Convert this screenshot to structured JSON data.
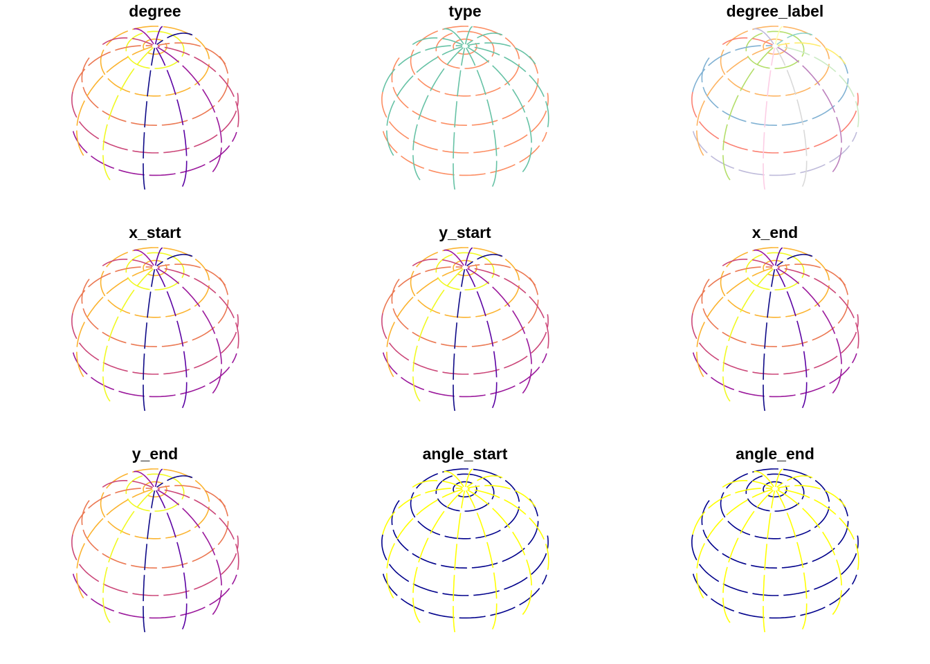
{
  "panels": [
    {
      "title": "degree",
      "palette": "plasma"
    },
    {
      "title": "type",
      "palette": "set2"
    },
    {
      "title": "degree_label",
      "palette": "set3"
    },
    {
      "title": "x_start",
      "palette": "plasma"
    },
    {
      "title": "y_start",
      "palette": "plasma"
    },
    {
      "title": "x_end",
      "palette": "plasma"
    },
    {
      "title": "y_end",
      "palette": "plasma"
    },
    {
      "title": "angle_start",
      "palette": "twotone"
    },
    {
      "title": "angle_end",
      "palette": "twotone"
    }
  ],
  "colors": {
    "plasma": [
      "#0d0887",
      "#5b02a3",
      "#9a179b",
      "#cb4678",
      "#eb7852",
      "#fbb32f",
      "#f0f921"
    ],
    "set2_lat": "#fc8d62",
    "set2_lon": "#66c2a5",
    "set3": [
      "#8dd3c7",
      "#ffffb3",
      "#bebada",
      "#fb8072",
      "#80b1d3",
      "#fdb462",
      "#b3de69",
      "#fccde5",
      "#d9d9d9",
      "#bc80bd",
      "#ccebc5",
      "#ffed6f"
    ],
    "twotone_lat": "#00008b",
    "twotone_lon": "#ffff00"
  }
}
